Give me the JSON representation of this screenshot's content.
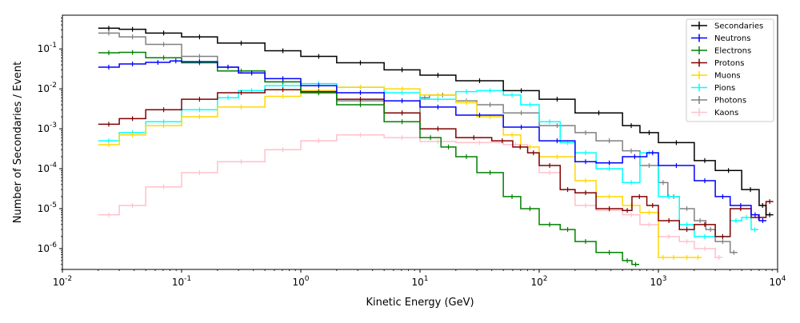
{
  "chart_data": {
    "type": "step",
    "title": "",
    "xlabel": "Kinetic Energy (GeV)",
    "ylabel": "Number of Secondaries / Event",
    "xscale": "log",
    "yscale": "log",
    "xlim": [
      0.01,
      10000
    ],
    "ylim": [
      3e-07,
      0.7
    ],
    "grid": false,
    "legend_position": "top-right",
    "x_tick_labels": [
      "10^-2",
      "10^-1",
      "10^0",
      "10^1",
      "10^2",
      "10^3",
      "10^4"
    ],
    "y_tick_labels": [
      "10^-6",
      "10^-5",
      "10^-4",
      "10^-3",
      "10^-2",
      "10^-1"
    ],
    "series": [
      {
        "name": "Secondaries",
        "color": "#000000",
        "style": "step",
        "x": [
          0.02,
          0.03,
          0.05,
          0.1,
          0.2,
          0.5,
          1,
          2,
          5,
          10,
          20,
          50,
          100,
          200,
          500,
          700,
          1000,
          2000,
          3000,
          5000,
          7000,
          8000
        ],
        "y": [
          0.33,
          0.31,
          0.25,
          0.2,
          0.14,
          0.09,
          0.065,
          0.045,
          0.03,
          0.022,
          0.016,
          0.009,
          0.0055,
          0.0025,
          0.0012,
          0.0008,
          0.00045,
          0.00016,
          9e-05,
          3e-05,
          1.2e-05,
          7e-06
        ]
      },
      {
        "name": "Neutrons",
        "color": "#0000ff",
        "style": "step",
        "x": [
          0.02,
          0.03,
          0.05,
          0.08,
          0.1,
          0.2,
          0.3,
          0.5,
          1,
          2,
          5,
          10,
          20,
          50,
          100,
          200,
          300,
          500,
          800,
          1000,
          2000,
          3000,
          4000,
          6000,
          7000
        ],
        "y": [
          0.035,
          0.042,
          0.046,
          0.05,
          0.048,
          0.035,
          0.025,
          0.018,
          0.012,
          0.008,
          0.005,
          0.0035,
          0.0022,
          0.0011,
          0.0005,
          0.00015,
          0.00014,
          0.0002,
          0.00025,
          0.00012,
          5e-05,
          2e-05,
          1.2e-05,
          7e-06,
          5e-06
        ]
      },
      {
        "name": "Electrons",
        "color": "#008000",
        "style": "step",
        "x": [
          0.02,
          0.03,
          0.05,
          0.1,
          0.2,
          0.5,
          1,
          2,
          5,
          10,
          15,
          20,
          30,
          50,
          70,
          100,
          150,
          200,
          300,
          500,
          600
        ],
        "y": [
          0.08,
          0.082,
          0.06,
          0.045,
          0.028,
          0.015,
          0.008,
          0.004,
          0.0015,
          0.0006,
          0.00035,
          0.0002,
          8e-05,
          2e-05,
          1e-05,
          4e-06,
          3e-06,
          1.5e-06,
          8e-07,
          5e-07,
          4e-07
        ]
      },
      {
        "name": "Protons",
        "color": "#800000",
        "style": "step",
        "x": [
          0.02,
          0.03,
          0.05,
          0.1,
          0.2,
          0.5,
          1,
          2,
          5,
          10,
          20,
          40,
          60,
          80,
          100,
          150,
          200,
          300,
          500,
          600,
          800,
          1000,
          1500,
          2000,
          3000,
          4000,
          6000,
          8000
        ],
        "y": [
          0.0013,
          0.0018,
          0.003,
          0.0055,
          0.008,
          0.0095,
          0.0085,
          0.0055,
          0.0025,
          0.001,
          0.0006,
          0.0005,
          0.00035,
          0.00025,
          0.00012,
          3e-05,
          2.5e-05,
          1e-05,
          9e-06,
          2e-05,
          1.2e-05,
          5e-06,
          3e-06,
          4e-06,
          2e-06,
          1e-05,
          6e-06,
          1.5e-05
        ]
      },
      {
        "name": "Muons",
        "color": "#ffd700",
        "style": "step",
        "x": [
          0.02,
          0.03,
          0.05,
          0.1,
          0.2,
          0.5,
          1,
          2,
          5,
          10,
          20,
          30,
          50,
          70,
          100,
          200,
          300,
          500,
          700,
          1000,
          1200,
          1500,
          2000
        ],
        "y": [
          0.0004,
          0.0007,
          0.0012,
          0.002,
          0.0035,
          0.0065,
          0.009,
          0.011,
          0.01,
          0.007,
          0.0045,
          0.002,
          0.0007,
          0.00035,
          0.0002,
          5e-05,
          2e-05,
          1.2e-05,
          8e-06,
          6e-07,
          6e-07,
          6e-07,
          6e-07
        ]
      },
      {
        "name": "Pions",
        "color": "#00ffff",
        "style": "step",
        "x": [
          0.02,
          0.03,
          0.05,
          0.1,
          0.2,
          0.3,
          0.5,
          1,
          2,
          5,
          10,
          20,
          30,
          50,
          70,
          100,
          150,
          200,
          300,
          500,
          700,
          1000,
          1500,
          2000,
          3000,
          4000,
          5000,
          6000
        ],
        "y": [
          0.0005,
          0.0008,
          0.0015,
          0.003,
          0.006,
          0.009,
          0.012,
          0.0135,
          0.011,
          0.008,
          0.0055,
          0.0085,
          0.009,
          0.007,
          0.004,
          0.0015,
          0.00045,
          0.00025,
          0.0001,
          4.5e-05,
          0.00025,
          2e-05,
          4e-06,
          2e-06,
          2e-06,
          5e-06,
          6e-06,
          3e-06
        ]
      },
      {
        "name": "Photons",
        "color": "#808080",
        "style": "step",
        "x": [
          0.02,
          0.03,
          0.05,
          0.1,
          0.2,
          0.3,
          0.5,
          1,
          2,
          5,
          10,
          12,
          20,
          30,
          50,
          100,
          200,
          300,
          500,
          700,
          1000,
          1200,
          1500,
          2000,
          2500,
          3000,
          4000
        ],
        "y": [
          0.25,
          0.2,
          0.13,
          0.065,
          0.035,
          0.025,
          0.015,
          0.008,
          0.005,
          0.0025,
          0.006,
          0.007,
          0.005,
          0.004,
          0.0025,
          0.0012,
          0.0008,
          0.0005,
          0.00028,
          0.00012,
          4.5e-05,
          2e-05,
          1e-05,
          5e-06,
          3e-06,
          1.5e-06,
          8e-07
        ]
      },
      {
        "name": "Kaons",
        "color": "#ffc0cb",
        "style": "step",
        "x": [
          0.02,
          0.03,
          0.05,
          0.1,
          0.2,
          0.5,
          1,
          2,
          5,
          10,
          20,
          50,
          80,
          100,
          150,
          200,
          300,
          500,
          700,
          1000,
          1500,
          2000,
          3000
        ],
        "y": [
          7e-06,
          1.2e-05,
          3.5e-05,
          8e-05,
          0.00015,
          0.0003,
          0.0005,
          0.0007,
          0.0006,
          0.00048,
          0.00045,
          0.0004,
          0.00025,
          8e-05,
          3e-05,
          1.2e-05,
          9e-06,
          7e-06,
          4e-06,
          2e-06,
          1.5e-06,
          1e-06,
          6e-07
        ]
      }
    ]
  }
}
